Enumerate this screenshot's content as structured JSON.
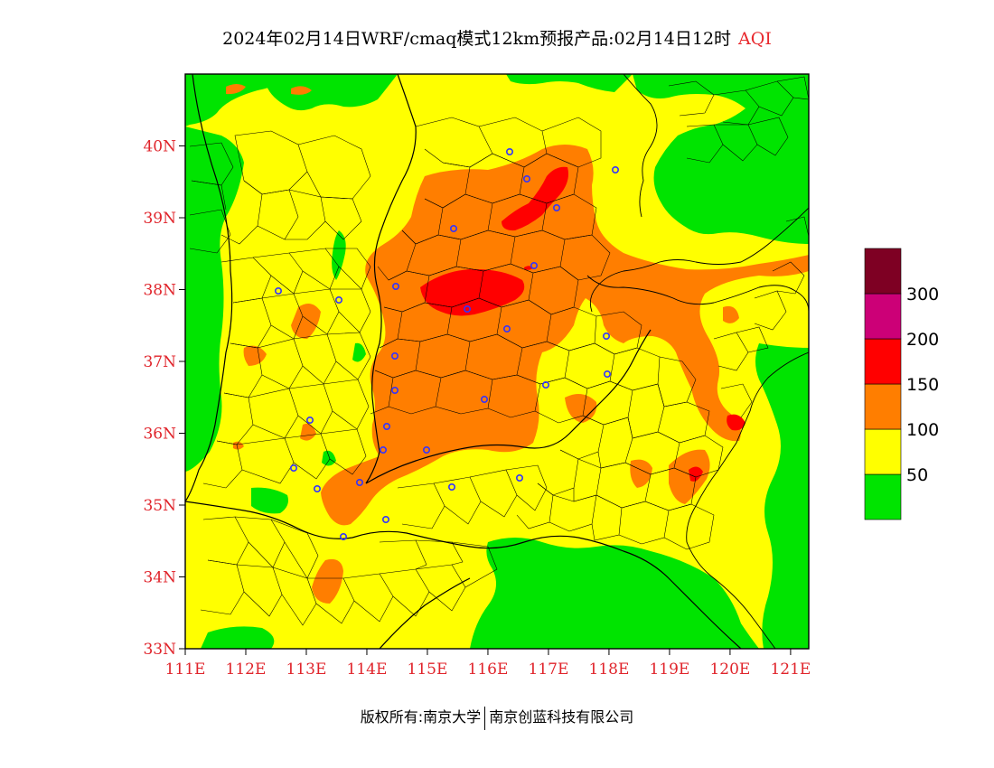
{
  "title": {
    "text": "2024年02月14日WRF/cmaq模式12km预报产品:02月14日12时",
    "variable": "AQI"
  },
  "map": {
    "lat_ticks": [
      "33N",
      "34N",
      "35N",
      "36N",
      "37N",
      "38N",
      "39N",
      "40N"
    ],
    "lon_ticks": [
      "111E",
      "112E",
      "113E",
      "114E",
      "115E",
      "116E",
      "117E",
      "118E",
      "119E",
      "120E",
      "121E"
    ],
    "lon_range": [
      111,
      121.3
    ],
    "lat_range": [
      33,
      41
    ],
    "station_marker_color": "#3333ff"
  },
  "legend": {
    "bins": [
      {
        "min": 0,
        "max": 50,
        "color": "#00e400"
      },
      {
        "min": 50,
        "max": 100,
        "color": "#ffff00"
      },
      {
        "min": 100,
        "max": 150,
        "color": "#ff7e00"
      },
      {
        "min": 150,
        "max": 200,
        "color": "#ff0000"
      },
      {
        "min": 200,
        "max": 300,
        "color": "#cc0077"
      },
      {
        "min": 300,
        "max": 500,
        "color": "#7e0023"
      }
    ],
    "labels": [
      "50",
      "100",
      "150",
      "200",
      "300"
    ]
  },
  "footer": {
    "left": "版权所有:南京大学",
    "right": "南京创蓝科技有限公司"
  }
}
